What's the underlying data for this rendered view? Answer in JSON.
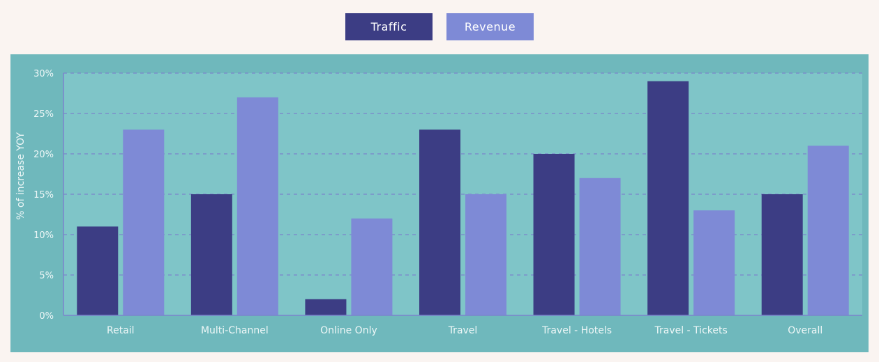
{
  "legend": {
    "traffic_label": "Traffic",
    "revenue_label": "Revenue"
  },
  "colors": {
    "page_bg": "#faf4f1",
    "panel_bg": "#6fb8bc",
    "plot_bg": "#7fc5c8",
    "traffic": "#3c3d84",
    "revenue": "#7e8ad6",
    "gridline": "#7b83cc",
    "axis_text": "#eef7f7"
  },
  "chart_data": {
    "type": "bar",
    "ylabel": "% of increase YOY",
    "xlabel": "",
    "ylim": [
      0,
      30
    ],
    "yticks": [
      "0%",
      "5%",
      "10%",
      "15%",
      "20%",
      "25%",
      "30%"
    ],
    "ytick_values": [
      0,
      5,
      10,
      15,
      20,
      25,
      30
    ],
    "grid": true,
    "legend_position": "top-center",
    "categories": [
      "Retail",
      "Multi-Channel",
      "Online Only",
      "Travel",
      "Travel - Hotels",
      "Travel - Tickets",
      "Overall"
    ],
    "series": [
      {
        "name": "Traffic",
        "values": [
          11,
          15,
          2,
          23,
          20,
          29,
          15
        ]
      },
      {
        "name": "Revenue",
        "values": [
          23,
          27,
          12,
          15,
          17,
          13,
          21
        ]
      }
    ]
  }
}
